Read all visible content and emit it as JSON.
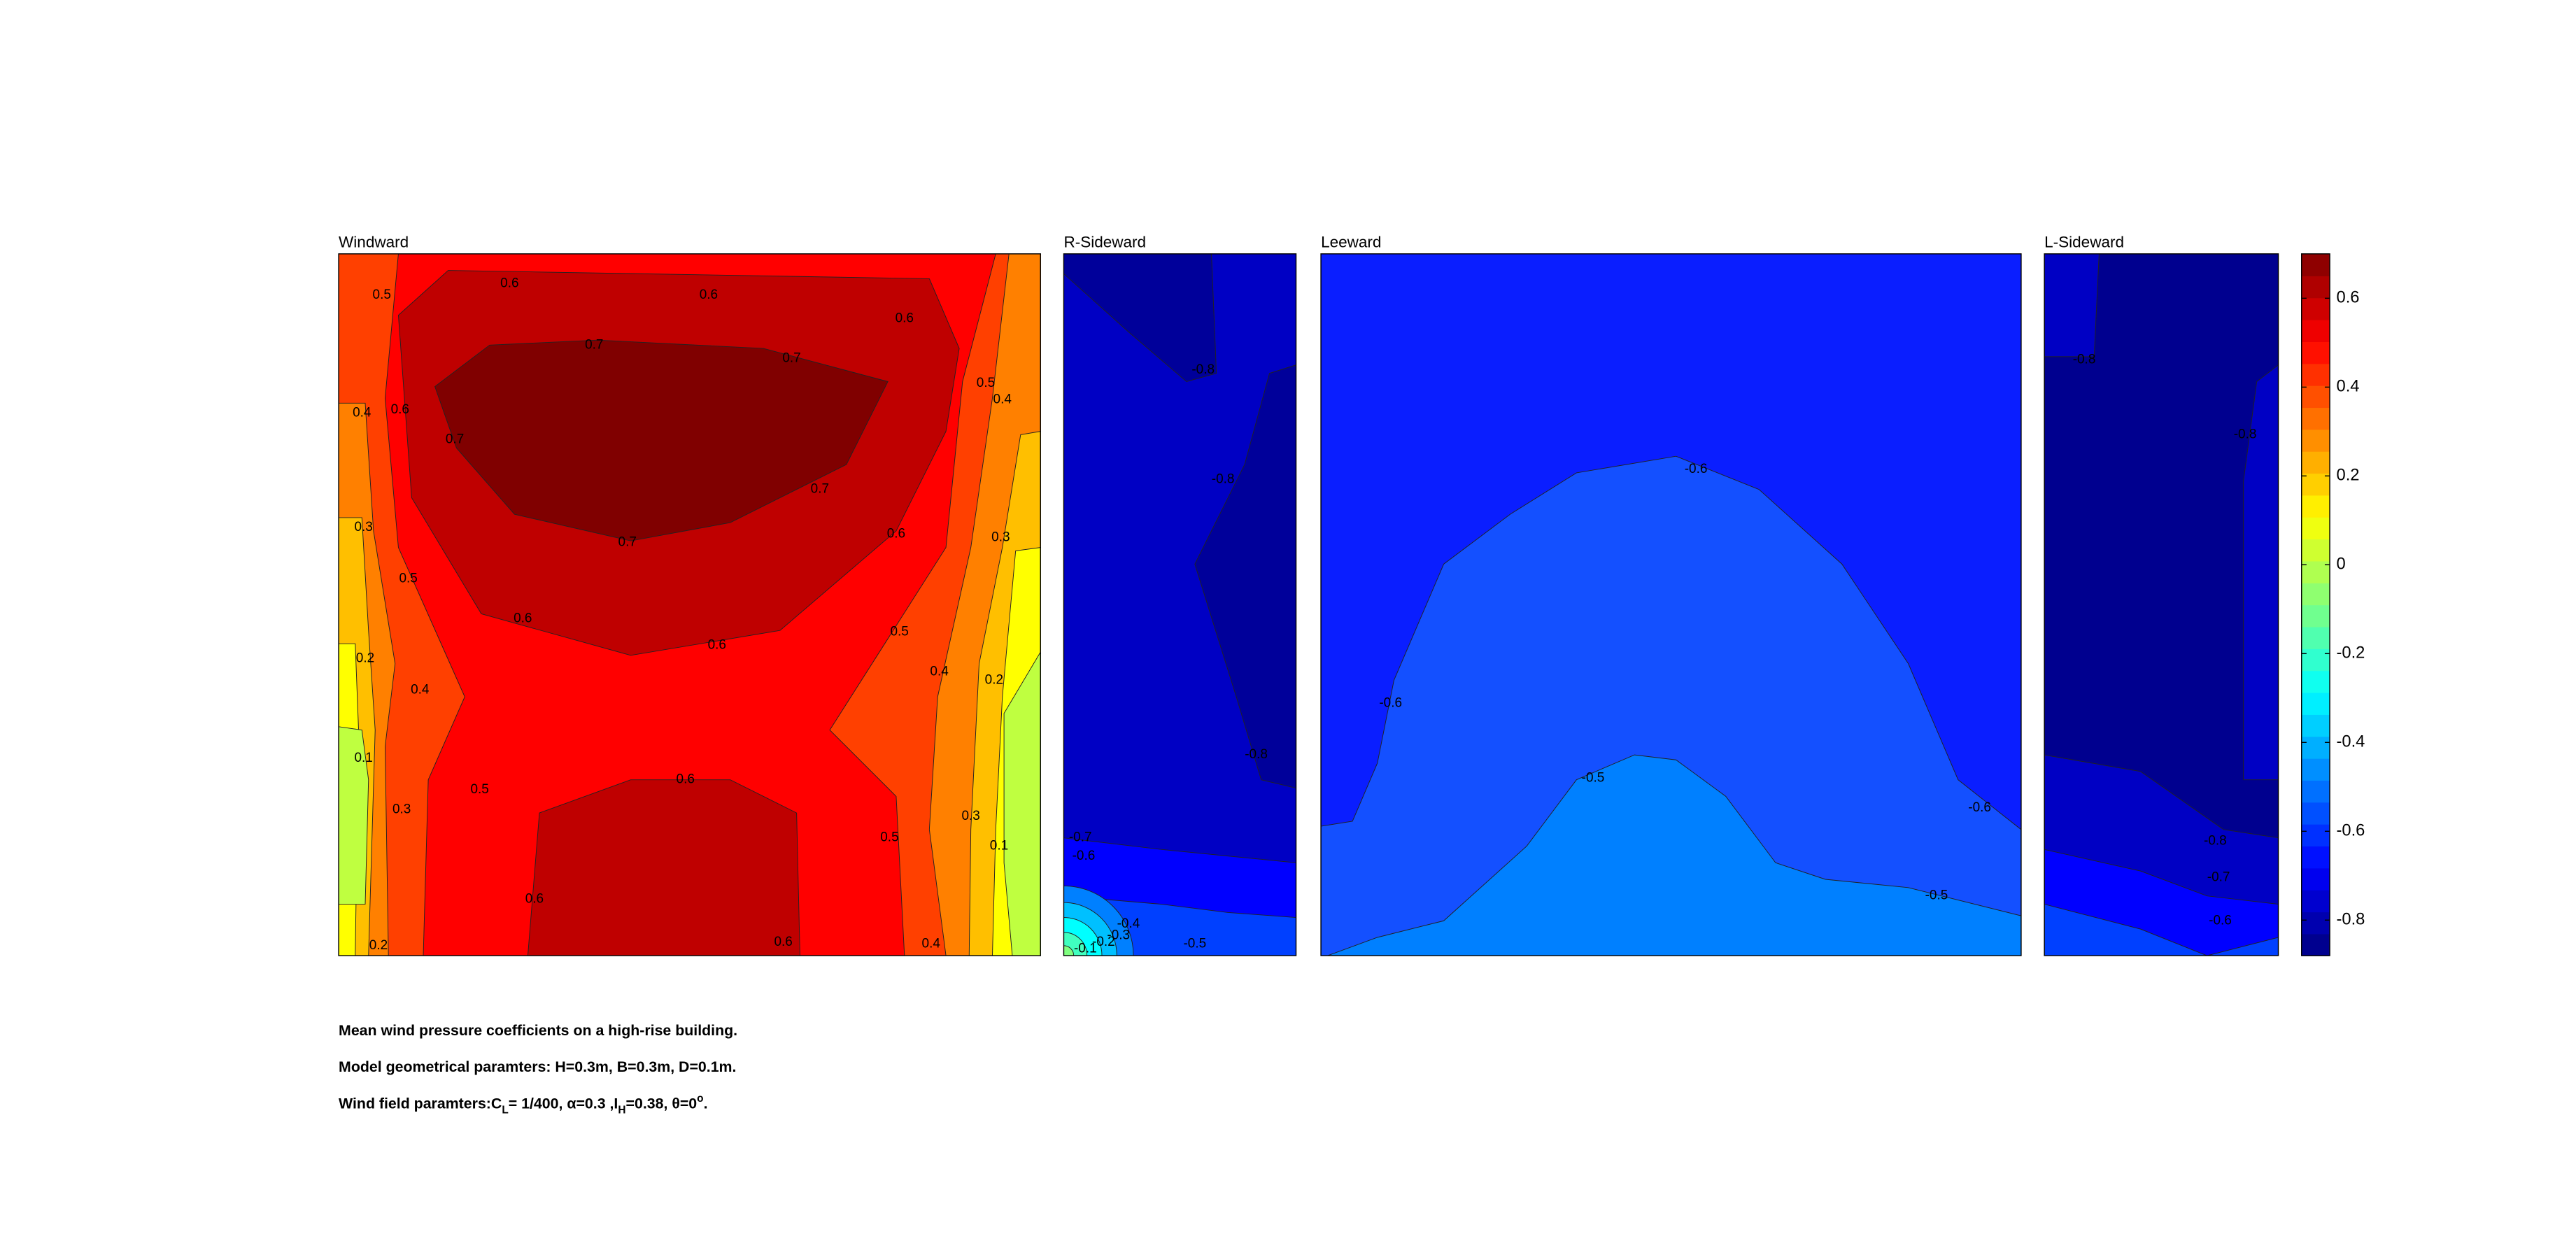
{
  "chart_data": [
    {
      "type": "contour",
      "title": "Windward",
      "contour_labels": [
        0.5,
        0.6,
        0.6,
        0.6,
        0.7,
        0.7,
        0.5,
        0.4,
        0.4,
        0.6,
        0.7,
        0.7,
        0.6,
        0.3,
        0.3,
        0.7,
        0.5,
        0.6,
        0.5,
        0.6,
        0.2,
        0.4,
        0.2,
        0.4,
        0.1,
        0.5,
        0.6,
        0.3,
        0.3,
        0.5,
        0.1,
        0.6,
        0.2,
        0.6,
        0.4
      ]
    },
    {
      "type": "contour",
      "title": "R-Sideward",
      "contour_labels": [
        -0.8,
        -0.8,
        -0.8,
        -0.7,
        -0.6,
        -0.4,
        -0.3,
        -0.2,
        -0.1,
        -0.5
      ]
    },
    {
      "type": "contour",
      "title": "Leeward",
      "contour_labels": [
        -0.6,
        -0.6,
        -0.5,
        -0.6,
        -0.5
      ]
    },
    {
      "type": "contour",
      "title": "L-Sideward",
      "contour_labels": [
        -0.8,
        -0.8,
        -0.8,
        -0.7,
        -0.6
      ]
    },
    {
      "type": "colorbar",
      "ylim": [
        -0.88,
        0.7
      ],
      "yticks": [
        -0.8,
        -0.6,
        -0.4,
        -0.2,
        0,
        0.2,
        0.4,
        0.6
      ]
    }
  ],
  "caption": [
    "Mean wind pressure coefficients on a high-rise building.",
    "Model geometrical paramters: H=0.3m, B=0.3m, D=0.1m.",
    [
      "Wind field paramters:C",
      "L",
      "= 1/400, α=0.3 ,I",
      "H",
      "=0.38, θ=0",
      "o",
      "."
    ]
  ]
}
